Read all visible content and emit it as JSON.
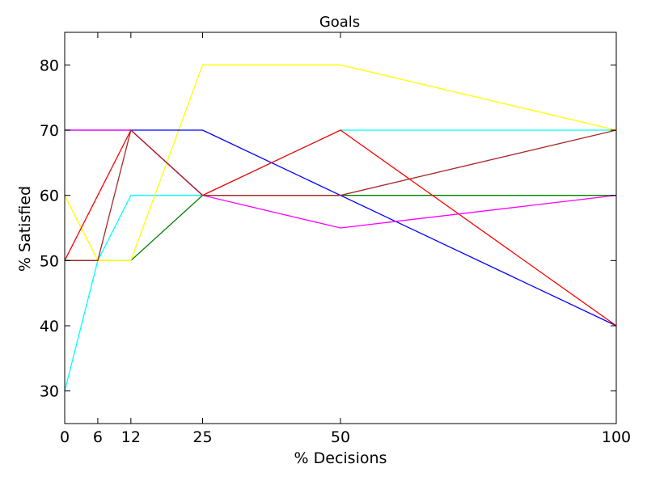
{
  "chart_data": {
    "type": "line",
    "title": "Goals",
    "xlabel": "% Decisions",
    "ylabel": "% Satisfied",
    "x": [
      0,
      6,
      12,
      25,
      50,
      100
    ],
    "xticks": [
      "0",
      "6",
      "12",
      "25",
      "50",
      "100"
    ],
    "yticks": [
      "30",
      "40",
      "50",
      "60",
      "70",
      "80"
    ],
    "xlim": [
      0,
      100
    ],
    "ylim": [
      25,
      85
    ],
    "grid": false,
    "series": [
      {
        "color": "#00ffff",
        "values": [
          30,
          50,
          60,
          60,
          70,
          70
        ]
      },
      {
        "color": "#008000",
        "values": [
          50,
          50,
          50,
          60,
          60,
          60
        ]
      },
      {
        "color": "#ffff00",
        "values": [
          60,
          50,
          50,
          80,
          80,
          70
        ]
      },
      {
        "color": "#0000ff",
        "values": [
          70,
          70,
          70,
          70,
          60,
          40
        ]
      },
      {
        "color": "#ff0000",
        "values": [
          50,
          60,
          70,
          60,
          70,
          40
        ]
      },
      {
        "color": "#ff00ff",
        "values": [
          70,
          70,
          70,
          60,
          55,
          60
        ]
      },
      {
        "color": "#a52a2a",
        "values": [
          50,
          50,
          70,
          60,
          60,
          70
        ]
      }
    ]
  }
}
